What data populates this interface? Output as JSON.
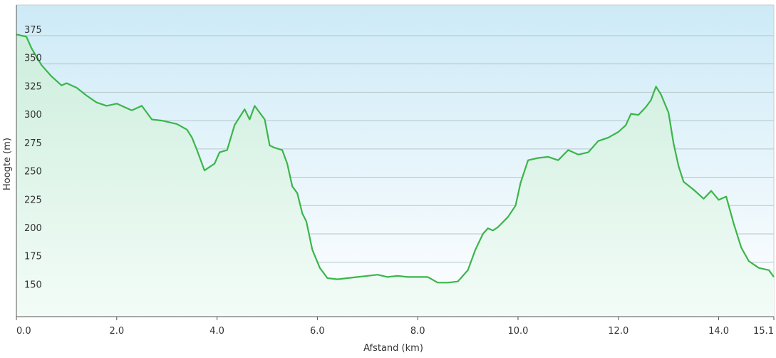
{
  "chart_data": {
    "type": "area",
    "title": "",
    "xlabel": "Afstand  (km)",
    "ylabel": "Hoogte (m)",
    "xlim": [
      0,
      15.1
    ],
    "ylim": [
      127,
      402
    ],
    "x_ticks": [
      {
        "v": 0,
        "label": "0.0"
      },
      {
        "v": 2,
        "label": "2.0"
      },
      {
        "v": 4,
        "label": "4.0"
      },
      {
        "v": 6,
        "label": "6.0"
      },
      {
        "v": 8,
        "label": "8.0"
      },
      {
        "v": 10,
        "label": "10.0"
      },
      {
        "v": 12,
        "label": "12.0"
      },
      {
        "v": 14,
        "label": "14.0"
      },
      {
        "v": 15.1,
        "label": "15.1"
      }
    ],
    "y_ticks": [
      {
        "v": 150,
        "label": "150"
      },
      {
        "v": 175,
        "label": "175"
      },
      {
        "v": 200,
        "label": "200"
      },
      {
        "v": 225,
        "label": "225"
      },
      {
        "v": 250,
        "label": "250"
      },
      {
        "v": 275,
        "label": "275"
      },
      {
        "v": 300,
        "label": "300"
      },
      {
        "v": 325,
        "label": "325"
      },
      {
        "v": 350,
        "label": "350"
      },
      {
        "v": 375,
        "label": "375"
      }
    ],
    "grid": true,
    "legend": "none",
    "colors": {
      "line": "#3bb54a",
      "fill_top": "#cdeedd",
      "fill_bottom": "#f3fcf7",
      "bg_top": "#cdeaf7",
      "bg_bottom": "#ffffff",
      "grid": "#b8c6cc",
      "axis": "#555555"
    },
    "series": [
      {
        "x": [
          0,
          0.2,
          0.3,
          0.5,
          0.7,
          0.9,
          1.0,
          1.2,
          1.4,
          1.6,
          1.8,
          2.0,
          2.2,
          2.3,
          2.5,
          2.7,
          2.9,
          3.0,
          3.2,
          3.4,
          3.5,
          3.6,
          3.75,
          3.85,
          3.95,
          4.05,
          4.2,
          4.35,
          4.55,
          4.65,
          4.75,
          4.85,
          4.95,
          5.05,
          5.15,
          5.3,
          5.4,
          5.5,
          5.6,
          5.7,
          5.78,
          5.9,
          6.05,
          6.2,
          6.4,
          6.6,
          6.8,
          7.0,
          7.2,
          7.4,
          7.6,
          7.8,
          8.0,
          8.2,
          8.4,
          8.6,
          8.8,
          9.0,
          9.15,
          9.3,
          9.4,
          9.5,
          9.6,
          9.8,
          9.95,
          10.05,
          10.2,
          10.4,
          10.6,
          10.8,
          11.0,
          11.2,
          11.4,
          11.6,
          11.8,
          12.0,
          12.15,
          12.25,
          12.4,
          12.55,
          12.65,
          12.75,
          12.85,
          13.0,
          13.1,
          13.2,
          13.3,
          13.5,
          13.7,
          13.85,
          14.0,
          14.15,
          14.3,
          14.45,
          14.6,
          14.8,
          15.0,
          15.1
        ],
        "y": [
          376,
          374,
          364,
          349,
          339,
          331,
          333,
          329,
          322,
          316,
          313,
          315,
          311,
          309,
          313,
          301,
          300,
          299,
          297,
          292,
          285,
          274,
          256,
          259,
          262,
          272,
          274,
          296,
          310,
          301,
          313,
          307,
          301,
          278,
          276,
          274,
          262,
          242,
          236,
          218,
          211,
          186,
          170,
          161,
          160,
          161,
          162,
          163,
          164,
          162,
          163,
          162,
          162,
          162,
          157,
          157,
          158,
          168,
          186,
          200,
          205,
          203,
          206,
          215,
          225,
          245,
          265,
          267,
          268,
          265,
          274,
          270,
          272,
          282,
          285,
          290,
          296,
          306,
          305,
          312,
          318,
          330,
          323,
          307,
          280,
          260,
          246,
          239,
          231,
          238,
          230,
          233,
          209,
          188,
          176,
          170,
          168,
          162
        ]
      }
    ]
  }
}
